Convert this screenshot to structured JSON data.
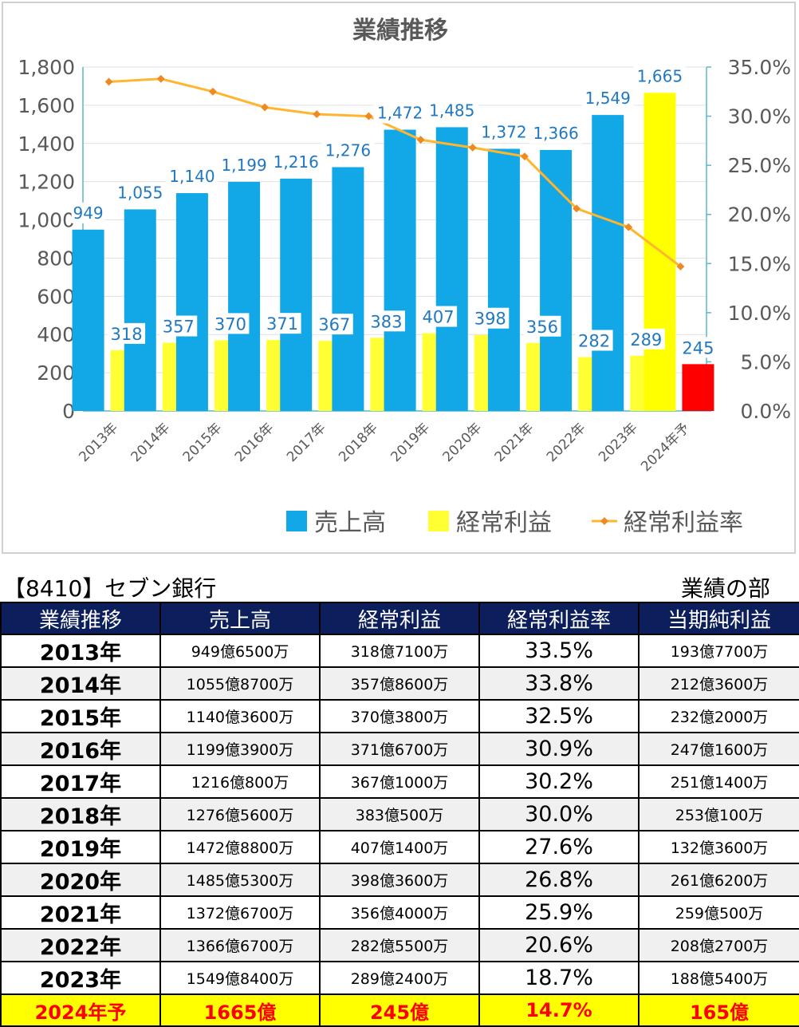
{
  "chart_data": {
    "type": "bar",
    "title": "業績推移",
    "categories": [
      "2013年",
      "2014年",
      "2015年",
      "2016年",
      "2017年",
      "2018年",
      "2019年",
      "2020年",
      "2021年",
      "2022年",
      "2023年",
      "2024年予"
    ],
    "series": [
      {
        "name": "売上高",
        "type": "bar",
        "axis": "left",
        "color": "#12a7e6",
        "values": [
          949,
          1055,
          1140,
          1199,
          1216,
          1276,
          1472,
          1485,
          1372,
          1366,
          1549,
          1665
        ],
        "labels": [
          "949",
          "1,055",
          "1,140",
          "1,199",
          "1,216",
          "1,276",
          "1,472",
          "1,485",
          "1,372",
          "1,366",
          "1,549",
          "1,665"
        ]
      },
      {
        "name": "経常利益",
        "type": "bar",
        "axis": "left",
        "color": "#ffff33",
        "values": [
          318,
          357,
          370,
          371,
          367,
          383,
          407,
          398,
          356,
          282,
          289,
          245
        ],
        "labels": [
          "318",
          "357",
          "370",
          "371",
          "367",
          "383",
          "407",
          "398",
          "356",
          "282",
          "289",
          "245"
        ]
      },
      {
        "name": "経常利益率",
        "type": "line",
        "axis": "right",
        "color": "#ffb52e",
        "values": [
          33.5,
          33.8,
          32.5,
          30.9,
          30.2,
          30.0,
          27.6,
          26.8,
          25.9,
          20.6,
          18.7,
          14.7
        ]
      }
    ],
    "forecast_colors": {
      "sales": "#ffff00",
      "profit": "#ff0000"
    },
    "yleft": {
      "min": 0,
      "max": 1800,
      "ticks": [
        "0",
        "200",
        "400",
        "600",
        "800",
        "1,000",
        "1,200",
        "1,400",
        "1,600",
        "1,800"
      ]
    },
    "yright": {
      "min": 0,
      "max": 35,
      "ticks": [
        "0.0%",
        "5.0%",
        "10.0%",
        "15.0%",
        "20.0%",
        "25.0%",
        "30.0%",
        "35.0%"
      ]
    },
    "grid": true,
    "legend": "bottom"
  },
  "header": {
    "company": "【8410】セブン銀行",
    "section": "業績の部"
  },
  "table": {
    "columns": [
      "業績推移",
      "売上高",
      "経常利益",
      "経常利益率",
      "当期純利益"
    ],
    "rows": [
      {
        "year": "2013年",
        "sales": "949億6500万",
        "profit": "318億7100万",
        "rate": "33.5%",
        "net": "193億7700万"
      },
      {
        "year": "2014年",
        "sales": "1055億8700万",
        "profit": "357億8600万",
        "rate": "33.8%",
        "net": "212億3600万"
      },
      {
        "year": "2015年",
        "sales": "1140億3600万",
        "profit": "370億3800万",
        "rate": "32.5%",
        "net": "232億2000万"
      },
      {
        "year": "2016年",
        "sales": "1199億3900万",
        "profit": "371億6700万",
        "rate": "30.9%",
        "net": "247億1600万"
      },
      {
        "year": "2017年",
        "sales": "1216億800万",
        "profit": "367億1000万",
        "rate": "30.2%",
        "net": "251億1400万"
      },
      {
        "year": "2018年",
        "sales": "1276億5600万",
        "profit": "383億500万",
        "rate": "30.0%",
        "net": "253億100万"
      },
      {
        "year": "2019年",
        "sales": "1472億8800万",
        "profit": "407億1400万",
        "rate": "27.6%",
        "net": "132億3600万"
      },
      {
        "year": "2020年",
        "sales": "1485億5300万",
        "profit": "398億3600万",
        "rate": "26.8%",
        "net": "261億6200万"
      },
      {
        "year": "2021年",
        "sales": "1372億6700万",
        "profit": "356億4000万",
        "rate": "25.9%",
        "net": "259億500万"
      },
      {
        "year": "2022年",
        "sales": "1366億6700万",
        "profit": "282億5500万",
        "rate": "20.6%",
        "net": "208億2700万"
      },
      {
        "year": "2023年",
        "sales": "1549億8400万",
        "profit": "289億2400万",
        "rate": "18.7%",
        "net": "188億5400万"
      }
    ],
    "forecast": {
      "year": "2024年予",
      "sales": "1665億",
      "profit": "245億",
      "rate": "14.7%",
      "net": "165億"
    }
  }
}
